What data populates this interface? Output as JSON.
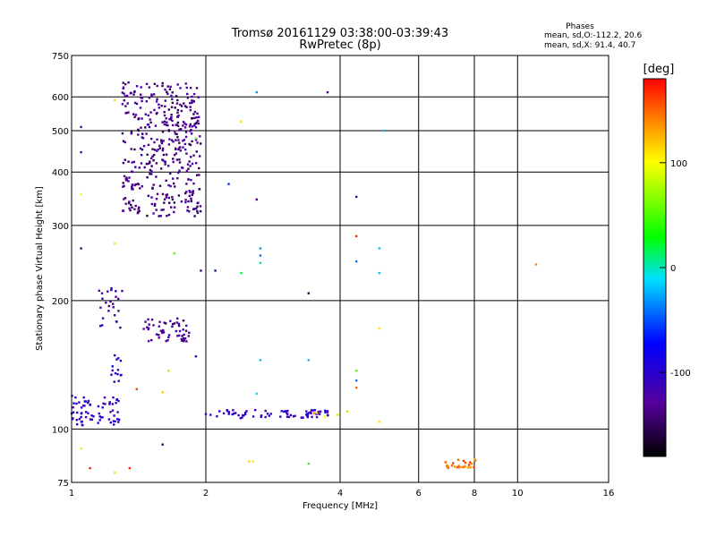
{
  "chart_data": {
    "type": "scatter",
    "title": "Tromsø 20161129 03:38:00-03:39:43",
    "subtitle": "RwPretec (8p)",
    "xlabel": "Frequency [MHz]",
    "ylabel": "Stationary phase Virtual Height [km]",
    "x_scale": "log",
    "y_scale": "log",
    "xlim": [
      1,
      16
    ],
    "ylim": [
      75,
      750
    ],
    "xticks": [
      1,
      2,
      4,
      6,
      8,
      10,
      16
    ],
    "yticks": [
      75,
      100,
      200,
      300,
      400,
      500,
      600,
      750
    ],
    "grid": true,
    "stats_title": "Phases",
    "stats_o": "mean, sd,O:-112.2, 20.6",
    "stats_x": "mean, sd,X: 91.4, 40.7",
    "colorbar": {
      "label": "[deg]",
      "range": [
        -180,
        180
      ],
      "ticks": [
        100,
        0,
        -100
      ]
    },
    "clusters": [
      {
        "fmin": 1.3,
        "fmax": 1.95,
        "hmin": 315,
        "hmax": 650,
        "phase": -135,
        "n": 420
      },
      {
        "fmin": 1.0,
        "fmax": 1.28,
        "hmin": 102,
        "hmax": 120,
        "phase": -105,
        "n": 70
      },
      {
        "fmin": 2.0,
        "fmax": 3.8,
        "hmin": 106,
        "hmax": 111,
        "phase": -108,
        "n": 70
      },
      {
        "fmin": 1.45,
        "fmax": 1.85,
        "hmin": 160,
        "hmax": 182,
        "phase": -130,
        "n": 55
      },
      {
        "fmin": 1.15,
        "fmax": 1.3,
        "hmin": 165,
        "hmax": 215,
        "phase": -120,
        "n": 25
      },
      {
        "fmin": 1.2,
        "fmax": 1.3,
        "hmin": 128,
        "hmax": 150,
        "phase": -100,
        "n": 14
      },
      {
        "fmin": 6.8,
        "fmax": 8.1,
        "hmin": 81,
        "hmax": 85,
        "phase": 150,
        "n": 28
      }
    ],
    "points": [
      {
        "x": 1.25,
        "y": 590,
        "p": 115
      },
      {
        "x": 1.05,
        "y": 510,
        "p": -125
      },
      {
        "x": 1.05,
        "y": 445,
        "p": -125
      },
      {
        "x": 1.05,
        "y": 355,
        "p": 100
      },
      {
        "x": 2.4,
        "y": 525,
        "p": 110
      },
      {
        "x": 2.6,
        "y": 615,
        "p": -30
      },
      {
        "x": 3.75,
        "y": 615,
        "p": -140
      },
      {
        "x": 2.25,
        "y": 375,
        "p": -60
      },
      {
        "x": 2.6,
        "y": 345,
        "p": -130
      },
      {
        "x": 4.35,
        "y": 350,
        "p": -140
      },
      {
        "x": 5.0,
        "y": 500,
        "p": -20
      },
      {
        "x": 1.9,
        "y": 480,
        "p": 60
      },
      {
        "x": 1.05,
        "y": 265,
        "p": -140
      },
      {
        "x": 1.25,
        "y": 272,
        "p": 110
      },
      {
        "x": 1.7,
        "y": 258,
        "p": 50
      },
      {
        "x": 1.95,
        "y": 235,
        "p": -140
      },
      {
        "x": 2.1,
        "y": 235,
        "p": -140
      },
      {
        "x": 2.4,
        "y": 232,
        "p": 20
      },
      {
        "x": 2.65,
        "y": 265,
        "p": -30
      },
      {
        "x": 2.65,
        "y": 255,
        "p": -40
      },
      {
        "x": 2.65,
        "y": 245,
        "p": 0
      },
      {
        "x": 3.4,
        "y": 208,
        "p": -150
      },
      {
        "x": 4.35,
        "y": 283,
        "p": 170
      },
      {
        "x": 4.35,
        "y": 247,
        "p": -40
      },
      {
        "x": 4.9,
        "y": 265,
        "p": -20
      },
      {
        "x": 4.9,
        "y": 232,
        "p": -20
      },
      {
        "x": 11.0,
        "y": 243,
        "p": 140
      },
      {
        "x": 1.9,
        "y": 148,
        "p": -110
      },
      {
        "x": 1.65,
        "y": 137,
        "p": 80
      },
      {
        "x": 1.6,
        "y": 122,
        "p": 120
      },
      {
        "x": 1.4,
        "y": 124,
        "p": 160
      },
      {
        "x": 2.65,
        "y": 145,
        "p": -20
      },
      {
        "x": 2.6,
        "y": 121,
        "p": -10
      },
      {
        "x": 3.4,
        "y": 145,
        "p": -20
      },
      {
        "x": 4.35,
        "y": 137,
        "p": 50
      },
      {
        "x": 4.35,
        "y": 130,
        "p": -40
      },
      {
        "x": 4.35,
        "y": 125,
        "p": 150
      },
      {
        "x": 4.9,
        "y": 172,
        "p": 110
      },
      {
        "x": 4.9,
        "y": 104,
        "p": 110
      },
      {
        "x": 4.15,
        "y": 110,
        "p": 80
      },
      {
        "x": 1.05,
        "y": 90,
        "p": 90
      },
      {
        "x": 1.6,
        "y": 92,
        "p": -150
      },
      {
        "x": 1.1,
        "y": 81,
        "p": 170
      },
      {
        "x": 1.25,
        "y": 79,
        "p": 110
      },
      {
        "x": 1.35,
        "y": 81,
        "p": 170
      },
      {
        "x": 2.5,
        "y": 84,
        "p": 110
      },
      {
        "x": 2.55,
        "y": 84,
        "p": 110
      },
      {
        "x": 3.4,
        "y": 83,
        "p": 40
      },
      {
        "x": 3.5,
        "y": 109,
        "p": 140
      },
      {
        "x": 3.55,
        "y": 109,
        "p": 120
      },
      {
        "x": 3.95,
        "y": 108,
        "p": 80
      },
      {
        "x": 3.7,
        "y": 107,
        "p": 100
      }
    ]
  }
}
